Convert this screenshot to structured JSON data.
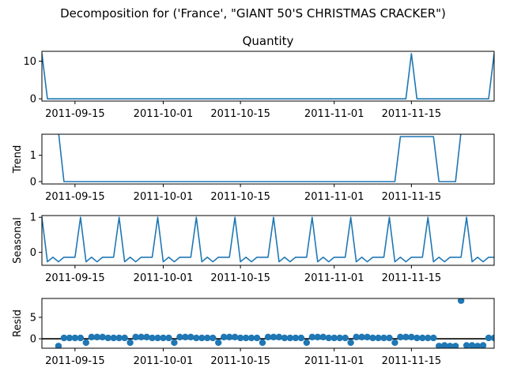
{
  "figure_title": "Decomposition for ('France', \"GIANT 50'S CHRISTMAS CRACKER\")",
  "colors": {
    "line": "#1f77b4",
    "axis": "#000000",
    "zero_line": "#000000"
  },
  "chart_data": [
    {
      "type": "line",
      "title": "Quantity",
      "ylabel": "",
      "x_range": [
        "2011-09-09",
        "2011-11-30"
      ],
      "ylim": [
        -0.6,
        12.6
      ],
      "yticks": [
        {
          "v": 0,
          "label": "0"
        },
        {
          "v": 10,
          "label": "10"
        }
      ],
      "xticks": [
        "2011-09-15",
        "2011-10-01",
        "2011-10-15",
        "2011-11-01",
        "2011-11-15"
      ],
      "series": [
        {
          "x": [
            "2011-09-09",
            "2011-09-10",
            "2011-11-14",
            "2011-11-15",
            "2011-11-16",
            "2011-11-29",
            "2011-11-30"
          ],
          "values": [
            12,
            0,
            0,
            12,
            0,
            0,
            12
          ]
        }
      ]
    },
    {
      "type": "line",
      "title": "",
      "ylabel": "Trend",
      "x_range": [
        "2011-09-09",
        "2011-11-30"
      ],
      "ylim": [
        -0.09,
        1.8
      ],
      "yticks": [
        {
          "v": 0,
          "label": "0"
        },
        {
          "v": 1,
          "label": "1"
        }
      ],
      "xticks": [
        "2011-09-15",
        "2011-10-01",
        "2011-10-15",
        "2011-11-01",
        "2011-11-15"
      ],
      "series": [
        {
          "x": [
            "2011-09-12",
            "2011-09-13",
            "2011-11-12",
            "2011-11-13",
            "2011-11-19",
            "2011-11-20",
            "2011-11-23",
            "2011-11-24"
          ],
          "values": [
            1.9,
            0,
            0,
            1.71,
            1.71,
            0,
            0,
            1.9
          ]
        }
      ]
    },
    {
      "type": "line",
      "title": "",
      "ylabel": "Seasonal",
      "x_range": [
        "2011-09-09",
        "2011-11-30"
      ],
      "ylim": [
        -0.37,
        1.05
      ],
      "yticks": [
        {
          "v": 0,
          "label": "0"
        },
        {
          "v": 1,
          "label": "1"
        }
      ],
      "xticks": [
        "2011-09-15",
        "2011-10-01",
        "2011-10-15",
        "2011-11-01",
        "2011-11-15"
      ],
      "weekly_pattern": [
        1.0,
        -0.27,
        -0.14,
        -0.27,
        -0.14,
        -0.14,
        -0.14
      ],
      "series_start": "2011-09-09",
      "series_end": "2011-11-30"
    },
    {
      "type": "scatter",
      "title": "",
      "ylabel": "Resid",
      "x_range": [
        "2011-09-09",
        "2011-11-30"
      ],
      "ylim": [
        -2.2,
        9.4
      ],
      "yticks": [
        {
          "v": 0,
          "label": "0"
        },
        {
          "v": 5,
          "label": "5"
        }
      ],
      "xticks": [
        "2011-09-15",
        "2011-10-01",
        "2011-10-15",
        "2011-11-01",
        "2011-11-15"
      ],
      "zero_line": true,
      "series_start": "2011-09-12",
      "values": [
        -1.7,
        0.2,
        0.2,
        0.2,
        0.2,
        -0.9,
        0.4,
        0.4,
        0.4,
        0.2,
        0.2,
        0.2,
        0.2,
        -0.9,
        0.4,
        0.4,
        0.4,
        0.2,
        0.2,
        0.2,
        0.2,
        -0.9,
        0.4,
        0.4,
        0.4,
        0.2,
        0.2,
        0.2,
        0.2,
        -0.9,
        0.4,
        0.4,
        0.4,
        0.2,
        0.2,
        0.2,
        0.2,
        -0.9,
        0.4,
        0.4,
        0.4,
        0.2,
        0.2,
        0.2,
        0.2,
        -0.9,
        0.4,
        0.4,
        0.4,
        0.2,
        0.2,
        0.2,
        0.2,
        -0.9,
        0.4,
        0.4,
        0.4,
        0.2,
        0.2,
        0.2,
        0.2,
        -0.9,
        0.4,
        0.4,
        0.4,
        0.2,
        0.2,
        0.2,
        0.2,
        -1.7,
        -1.55,
        -1.7,
        -1.7,
        8.9,
        -1.55,
        -1.55,
        -1.7,
        -1.55,
        0.2,
        0.2,
        0.2,
        -1.0,
        -1.7
      ]
    }
  ]
}
